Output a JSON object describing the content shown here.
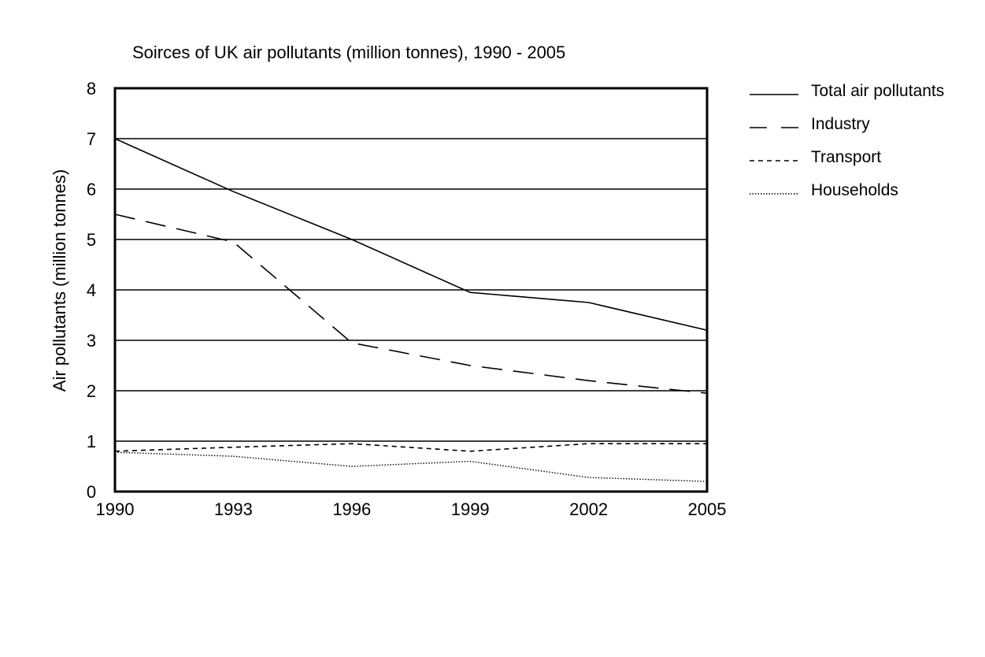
{
  "chart_data": {
    "type": "line",
    "title": "Soirces of UK air pollutants (million tonnes), 1990 - 2005",
    "xlabel": "",
    "ylabel": "Air pollutants (million tonnes)",
    "x": [
      "1990",
      "1993",
      "1996",
      "1999",
      "2002",
      "2005"
    ],
    "ylim": [
      0,
      8
    ],
    "yticks": [
      "0",
      "1",
      "2",
      "3",
      "4",
      "5",
      "6",
      "7",
      "8"
    ],
    "grid": true,
    "legend_position": "right",
    "series": [
      {
        "name": "Total air pollutants",
        "style": "solid",
        "values": [
          7.0,
          5.95,
          5.0,
          3.95,
          3.75,
          3.2
        ]
      },
      {
        "name": "Industry",
        "style": "dashed",
        "values": [
          5.5,
          4.95,
          2.95,
          2.5,
          2.2,
          1.95
        ]
      },
      {
        "name": "Transport",
        "style": "short-dashed",
        "values": [
          0.8,
          0.88,
          0.95,
          0.8,
          0.95,
          0.95
        ]
      },
      {
        "name": "Households",
        "style": "dotted",
        "values": [
          0.78,
          0.7,
          0.5,
          0.6,
          0.28,
          0.2
        ]
      }
    ],
    "line_color": "#000000"
  }
}
